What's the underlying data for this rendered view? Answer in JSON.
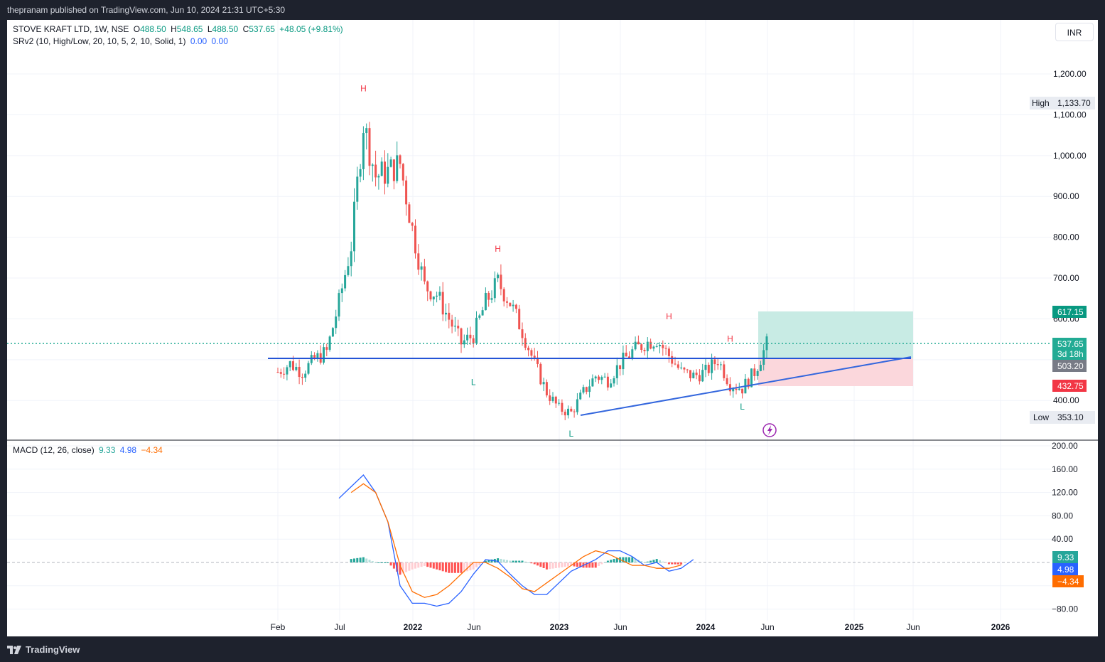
{
  "header": {
    "publish_text": "thepranam published on TradingView.com, Jun 10, 2024 21:31 UTC+5:30"
  },
  "footer": {
    "brand": "TradingView"
  },
  "currency_button": "INR",
  "legend": {
    "symbol": "STOVE KRAFT LTD, 1W, NSE",
    "o_label": "O",
    "o": "488.50",
    "h_label": "H",
    "h": "548.65",
    "l_label": "L",
    "l": "488.50",
    "c_label": "C",
    "c": "537.65",
    "change": "+48.05 (+9.81%)",
    "indicator": "SRv2 (10, High/Low, 20, 10, 5, 2, 10, Solid, 1)",
    "ind_v1": "0.00",
    "ind_v2": "0.00"
  },
  "macd_legend": {
    "name": "MACD (12, 26, close)",
    "hist": "9.33",
    "macd": "4.98",
    "signal": "−4.34"
  },
  "colors": {
    "up": "#26a69a",
    "down": "#ef5350",
    "blue": "#2962ff",
    "orange": "#ff6d00",
    "trendline": "#3366dd",
    "label_high": "#f23645",
    "label_low": "#089981",
    "target_zone": "#c8ebe4",
    "stop_zone": "#fbd7dc"
  },
  "price_axis": {
    "ticks": [
      "1,200.00",
      "1,100.00",
      "1,000.00",
      "900.00",
      "800.00",
      "700.00",
      "600.00",
      "400.00"
    ],
    "labels": {
      "high_label": "High",
      "high": "1,133.70",
      "low_label": "Low",
      "low": "353.10",
      "target": "617.15",
      "current": "537.65",
      "countdown": "3d 18h",
      "entry": "503.20",
      "stop": "432.75"
    }
  },
  "macd_axis": {
    "ticks": [
      "200.00",
      "160.00",
      "120.00",
      "80.00",
      "40.00",
      "−80.00"
    ],
    "labels": {
      "hist": "9.33",
      "macd": "4.98",
      "signal": "−4.34"
    }
  },
  "time_axis": {
    "labels": [
      "Feb",
      "Jul",
      "2022",
      "Jun",
      "2023",
      "Jun",
      "2024",
      "Jun",
      "2025",
      "Jun",
      "2026"
    ]
  },
  "chart_data": [
    {
      "type": "candlestick",
      "title": "STOVE KRAFT LTD, 1W, NSE",
      "timeframe": "1W",
      "ylim": [
        320,
        1260
      ],
      "summary": {
        "open": 488.5,
        "high": 548.65,
        "low": 488.5,
        "close": 537.65,
        "change": 48.05,
        "change_pct": 9.81
      },
      "all_time_high": 1133.7,
      "all_time_low": 353.1,
      "horizontal_level": 503.2,
      "current_price": 537.65,
      "position": {
        "entry": 503.2,
        "target": 617.15,
        "stop": 432.75
      },
      "trendline": [
        {
          "date": "2023-02",
          "value": 355
        },
        {
          "date": "2025-05",
          "value": 503
        }
      ],
      "pattern_labels": [
        {
          "text": "H",
          "date": "2021-09",
          "value": 1133
        },
        {
          "text": "H",
          "date": "2022-08",
          "value": 740
        },
        {
          "text": "H",
          "date": "2023-10",
          "value": 575
        },
        {
          "text": "H",
          "date": "2024-03",
          "value": 520
        },
        {
          "text": "L",
          "date": "2022-06",
          "value": 480
        },
        {
          "text": "L",
          "date": "2023-02",
          "value": 353
        },
        {
          "text": "L",
          "date": "2024-04",
          "value": 420
        }
      ],
      "close_series": [
        [
          "2021-02",
          470
        ],
        [
          "2021-03",
          490
        ],
        [
          "2021-04",
          470
        ],
        [
          "2021-05",
          500
        ],
        [
          "2021-06",
          520
        ],
        [
          "2021-07",
          640
        ],
        [
          "2021-08",
          780
        ],
        [
          "2021-09",
          1080
        ],
        [
          "2021-10",
          950
        ],
        [
          "2021-11",
          960
        ],
        [
          "2021-12",
          980
        ],
        [
          "2022-01",
          820
        ],
        [
          "2022-02",
          680
        ],
        [
          "2022-03",
          660
        ],
        [
          "2022-04",
          600
        ],
        [
          "2022-05",
          540
        ],
        [
          "2022-06",
          560
        ],
        [
          "2022-07",
          640
        ],
        [
          "2022-08",
          690
        ],
        [
          "2022-09",
          640
        ],
        [
          "2022-10",
          570
        ],
        [
          "2022-11",
          490
        ],
        [
          "2022-12",
          420
        ],
        [
          "2023-01",
          380
        ],
        [
          "2023-02",
          370
        ],
        [
          "2023-03",
          420
        ],
        [
          "2023-04",
          460
        ],
        [
          "2023-05",
          450
        ],
        [
          "2023-06",
          490
        ],
        [
          "2023-07",
          520
        ],
        [
          "2023-08",
          540
        ],
        [
          "2023-09",
          550
        ],
        [
          "2023-10",
          510
        ],
        [
          "2023-11",
          470
        ],
        [
          "2023-12",
          460
        ],
        [
          "2024-01",
          470
        ],
        [
          "2024-02",
          500
        ],
        [
          "2024-03",
          440
        ],
        [
          "2024-04",
          430
        ],
        [
          "2024-05",
          470
        ],
        [
          "2024-06",
          537.65
        ]
      ]
    },
    {
      "type": "line",
      "title": "MACD (12, 26, close)",
      "ylim": [
        -90,
        205
      ],
      "series": [
        {
          "name": "MACD",
          "points": [
            [
              "2021-07",
              110
            ],
            [
              "2021-08",
              130
            ],
            [
              "2021-09",
              150
            ],
            [
              "2021-10",
              120
            ],
            [
              "2021-11",
              70
            ],
            [
              "2021-12",
              -40
            ],
            [
              "2022-01",
              -70
            ],
            [
              "2022-02",
              -70
            ],
            [
              "2022-03",
              -75
            ],
            [
              "2022-04",
              -70
            ],
            [
              "2022-05",
              -50
            ],
            [
              "2022-06",
              -20
            ],
            [
              "2022-07",
              5
            ],
            [
              "2022-08",
              2
            ],
            [
              "2022-09",
              -20
            ],
            [
              "2022-10",
              -40
            ],
            [
              "2022-11",
              -55
            ],
            [
              "2022-12",
              -55
            ],
            [
              "2023-01",
              -35
            ],
            [
              "2023-02",
              -15
            ],
            [
              "2023-03",
              -5
            ],
            [
              "2023-04",
              5
            ],
            [
              "2023-05",
              20
            ],
            [
              "2023-06",
              20
            ],
            [
              "2023-07",
              10
            ],
            [
              "2023-08",
              -5
            ],
            [
              "2023-09",
              0
            ],
            [
              "2023-10",
              -15
            ],
            [
              "2023-11",
              -10
            ],
            [
              "2023-12",
              4.98
            ]
          ]
        },
        {
          "name": "Signal",
          "points": [
            [
              "2021-08",
              120
            ],
            [
              "2021-09",
              135
            ],
            [
              "2021-10",
              120
            ],
            [
              "2021-11",
              70
            ],
            [
              "2021-12",
              -5
            ],
            [
              "2022-01",
              -50
            ],
            [
              "2022-02",
              -60
            ],
            [
              "2022-03",
              -55
            ],
            [
              "2022-04",
              -40
            ],
            [
              "2022-05",
              -20
            ],
            [
              "2022-06",
              0
            ],
            [
              "2022-07",
              0
            ],
            [
              "2022-08",
              -10
            ],
            [
              "2022-09",
              -25
            ],
            [
              "2022-10",
              -45
            ],
            [
              "2022-11",
              -50
            ],
            [
              "2022-12",
              -35
            ],
            [
              "2023-01",
              -20
            ],
            [
              "2023-02",
              -5
            ],
            [
              "2023-03",
              10
            ],
            [
              "2023-04",
              20
            ],
            [
              "2023-05",
              15
            ],
            [
              "2023-06",
              5
            ],
            [
              "2023-07",
              -5
            ],
            [
              "2023-08",
              -5
            ],
            [
              "2023-09",
              -10
            ],
            [
              "2023-10",
              -10
            ],
            [
              "2023-11",
              -4.34
            ]
          ]
        }
      ]
    }
  ]
}
